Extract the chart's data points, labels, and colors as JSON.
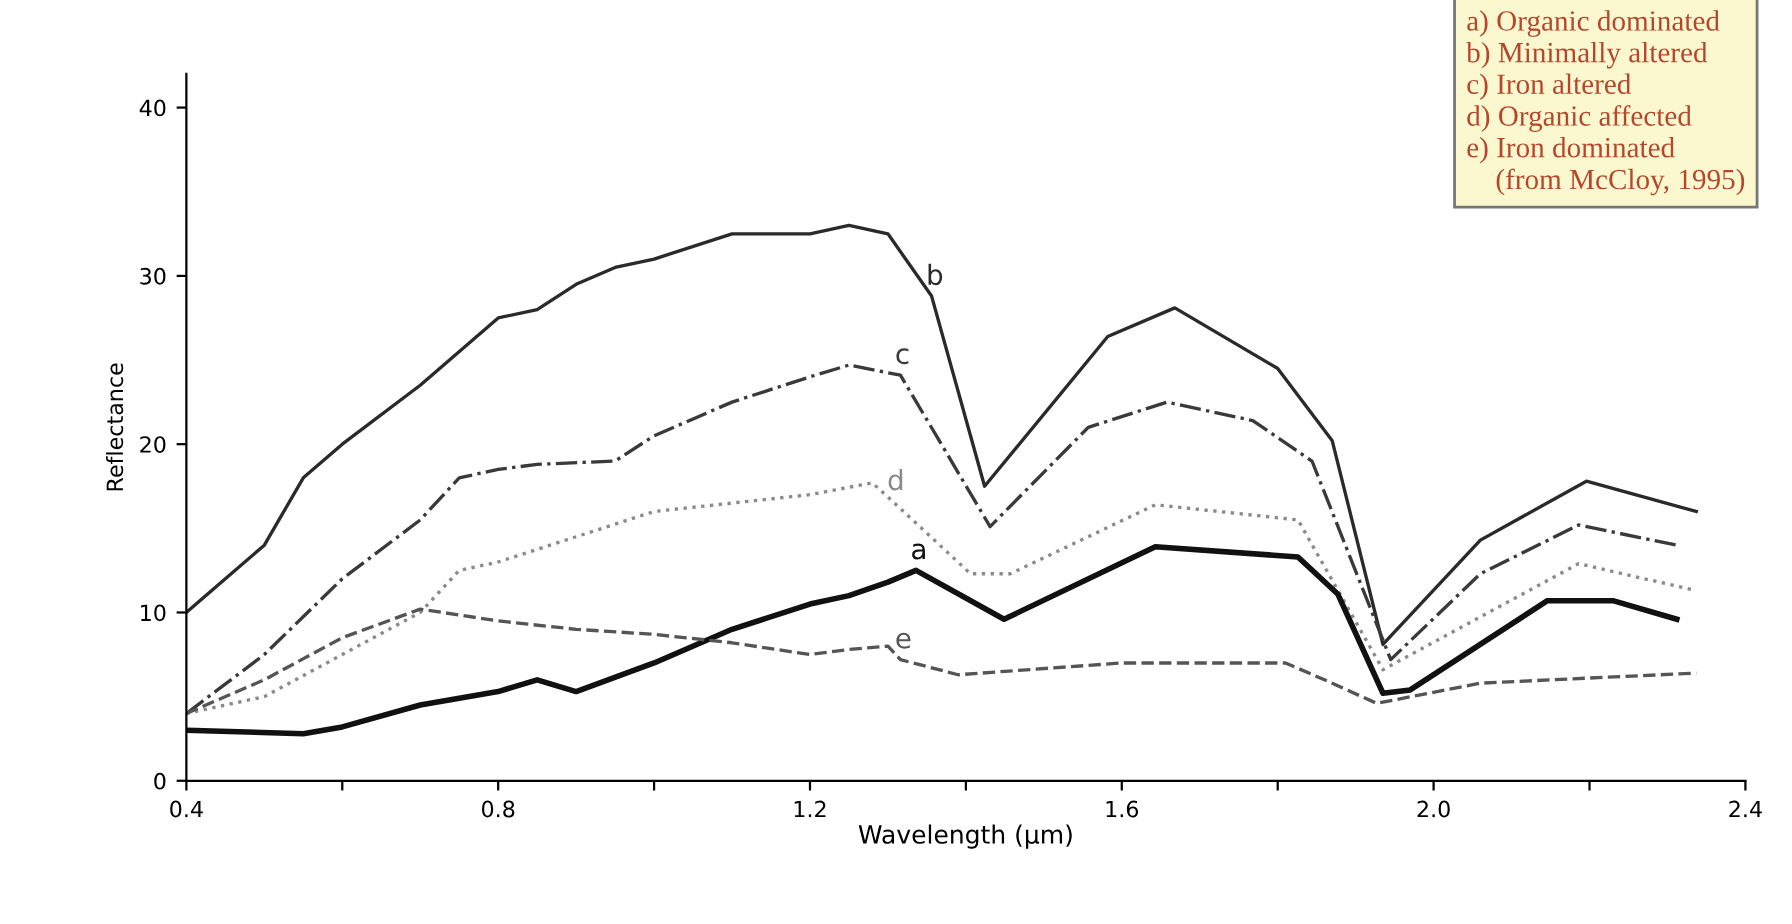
{
  "chart_data": {
    "type": "line",
    "xlabel": "Wavelength (µm)",
    "ylabel": "Reflectance",
    "xlim": [
      0.4,
      2.4
    ],
    "ylim": [
      0,
      42
    ],
    "xticks": [
      0.4,
      {
        "value": 0.6,
        "label": null
      },
      0.8,
      {
        "value": 1.0,
        "label": null
      },
      1.2,
      {
        "value": 1.4,
        "label": null
      },
      1.6,
      {
        "value": 1.8,
        "label": null
      },
      {
        "value": 2.0,
        "label": "2.0"
      },
      {
        "value": 2.2,
        "label": null
      },
      2.4
    ],
    "yticks": [
      0,
      10,
      20,
      30,
      40
    ],
    "grid": false,
    "legend": false,
    "annotations": [
      "a) Organic dominated\nb) Minimally altered\nc) Iron altered\nd) Organic affected\ne) Iron dominated\n    (from McCloy, 1995)"
    ],
    "series": [
      {
        "name": "b",
        "color": "#2a2a2a",
        "line_style": "solid",
        "x": [
          0.4,
          0.45,
          0.5,
          0.55,
          0.6,
          0.7,
          0.8,
          0.85,
          0.9,
          0.95,
          1.0,
          1.1,
          1.2,
          1.25,
          1.3,
          1.356,
          1.424,
          1.582,
          1.668,
          1.8,
          1.87,
          1.935,
          2.06,
          2.196,
          2.337
        ],
        "values": [
          10,
          12,
          14,
          18,
          20,
          23.5,
          27.5,
          28,
          29.5,
          30.5,
          31,
          32.5,
          32.5,
          33,
          32.5,
          28.8,
          17.5,
          26.4,
          28.1,
          24.5,
          20.2,
          8.1,
          14.3,
          17.8,
          16.0
        ]
      },
      {
        "name": "c",
        "color": "#3a3a3a",
        "line_style": "dashdot",
        "x": [
          0.4,
          0.5,
          0.6,
          0.7,
          0.75,
          0.8,
          0.85,
          0.95,
          1.0,
          1.1,
          1.2,
          1.25,
          1.316,
          1.366,
          1.431,
          1.557,
          1.658,
          1.768,
          1.844,
          1.945,
          2.06,
          2.186,
          2.312
        ],
        "values": [
          4,
          7.5,
          12,
          15.5,
          18,
          18.5,
          18.8,
          19,
          20.5,
          22.5,
          24,
          24.7,
          24.1,
          20.2,
          15.1,
          21.0,
          22.5,
          21.4,
          19.0,
          7.2,
          12.3,
          15.2,
          14.0
        ]
      },
      {
        "name": "d",
        "color": "#8a8a8a",
        "line_style": "dotted",
        "x": [
          0.4,
          0.5,
          0.6,
          0.7,
          0.75,
          0.8,
          0.9,
          1.0,
          1.1,
          1.2,
          1.28,
          1.306,
          1.406,
          1.457,
          1.643,
          1.826,
          1.935,
          2.186,
          2.337
        ],
        "values": [
          4,
          5,
          7.5,
          10,
          12.5,
          13,
          14.5,
          16,
          16.5,
          17,
          17.7,
          16.6,
          12.3,
          12.3,
          16.4,
          15.5,
          6.6,
          12.9,
          11.3
        ]
      },
      {
        "name": "a",
        "color": "#111111",
        "line_style": "solid",
        "x": [
          0.4,
          0.55,
          0.6,
          0.7,
          0.8,
          0.85,
          0.9,
          1.0,
          1.1,
          1.2,
          1.25,
          1.3,
          1.336,
          1.449,
          1.643,
          1.826,
          1.877,
          1.935,
          1.97,
          2.146,
          2.23,
          2.312
        ],
        "values": [
          3,
          2.8,
          3.2,
          4.5,
          5.3,
          6,
          5.3,
          7,
          9,
          10.5,
          11,
          11.8,
          12.5,
          9.6,
          13.9,
          13.3,
          11.1,
          5.2,
          5.4,
          10.7,
          10.7,
          9.6
        ]
      },
      {
        "name": "e",
        "color": "#555555",
        "line_style": "dashed",
        "x": [
          0.4,
          0.5,
          0.6,
          0.7,
          0.8,
          0.9,
          1.0,
          1.1,
          1.2,
          1.25,
          1.3,
          1.316,
          1.39,
          1.6,
          1.81,
          1.86,
          1.927,
          2.06,
          2.337
        ],
        "values": [
          4,
          6,
          8.5,
          10.2,
          9.5,
          9,
          8.7,
          8.2,
          7.5,
          7.8,
          8,
          7.2,
          6.3,
          7.0,
          7.0,
          6.0,
          4.6,
          5.8,
          6.4
        ]
      }
    ]
  }
}
